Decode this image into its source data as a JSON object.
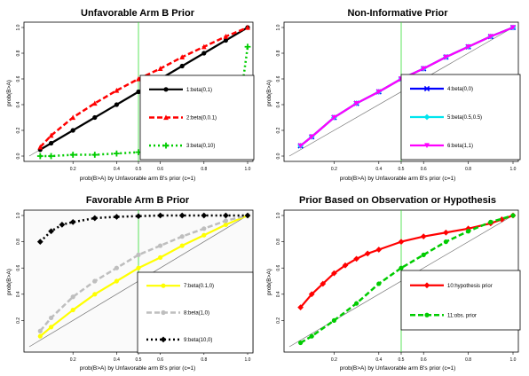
{
  "chart_data": [
    {
      "type": "line",
      "title": "Unfavorable Arm B Prior",
      "xlabel": "prob(B>A) by Unfavorable arm B's prior (c=1)",
      "ylabel": "prob(B>A)",
      "xlim": [
        0,
        1
      ],
      "ylim": [
        0,
        1
      ],
      "xticks": [
        "0.2",
        "0.4",
        "0.5",
        "0.6",
        "0.8",
        "1.0"
      ],
      "yticks": [
        "0.0",
        "0.2",
        "0.4",
        "0.6",
        "0.8",
        "1.0"
      ],
      "legend_position": "center-right",
      "series": [
        {
          "name": "1:beta(0,1)",
          "color": "#000000",
          "style": "solid",
          "marker": "circle",
          "x": [
            0.05,
            0.1,
            0.2,
            0.3,
            0.4,
            0.5,
            0.6,
            0.7,
            0.8,
            0.9,
            1.0
          ],
          "y": [
            0.05,
            0.1,
            0.2,
            0.3,
            0.4,
            0.5,
            0.6,
            0.7,
            0.8,
            0.9,
            1.0
          ]
        },
        {
          "name": "2:beta(0,0.1)",
          "color": "#ff0000",
          "style": "dashed",
          "marker": "triangle",
          "x": [
            0.05,
            0.1,
            0.2,
            0.3,
            0.4,
            0.5,
            0.6,
            0.7,
            0.8,
            0.9,
            1.0
          ],
          "y": [
            0.07,
            0.16,
            0.3,
            0.41,
            0.51,
            0.6,
            0.68,
            0.77,
            0.85,
            0.93,
            1.0
          ]
        },
        {
          "name": "3:beta(0,10)",
          "color": "#00cc00",
          "style": "dotted",
          "marker": "plus",
          "x": [
            0.05,
            0.1,
            0.2,
            0.3,
            0.4,
            0.5,
            0.6,
            0.7,
            0.8,
            0.9,
            0.95,
            0.98,
            1.0
          ],
          "y": [
            0.0,
            0.0,
            0.01,
            0.01,
            0.02,
            0.03,
            0.05,
            0.08,
            0.13,
            0.25,
            0.38,
            0.6,
            0.85
          ]
        }
      ],
      "reference_line_x": 0.5
    },
    {
      "type": "line",
      "title": "Non-Informative Prior",
      "xlabel": "prob(B>A) by Unfavorable arm B's prior (c=1)",
      "ylabel": "prob(B>A)",
      "xlim": [
        0,
        1
      ],
      "ylim": [
        0,
        1
      ],
      "xticks": [
        "0.2",
        "0.4",
        "0.5",
        "0.6",
        "0.8",
        "1.0"
      ],
      "yticks": [
        "0.0",
        "0.2",
        "0.4",
        "0.6",
        "0.8",
        "1.0"
      ],
      "legend_position": "bottom-right",
      "series": [
        {
          "name": "4:beta(0,0)",
          "color": "#0000ff",
          "style": "solid",
          "marker": "x",
          "x": [
            0.05,
            0.1,
            0.2,
            0.3,
            0.4,
            0.5,
            0.6,
            0.7,
            0.8,
            0.9,
            1.0
          ],
          "y": [
            0.08,
            0.15,
            0.3,
            0.41,
            0.5,
            0.6,
            0.68,
            0.77,
            0.85,
            0.93,
            1.0
          ]
        },
        {
          "name": "5:beta(0.5,0.5)",
          "color": "#00e5ee",
          "style": "solid",
          "marker": "diamond",
          "x": [
            0.05,
            0.1,
            0.2,
            0.3,
            0.4,
            0.5,
            0.6,
            0.7,
            0.8,
            0.9,
            1.0
          ],
          "y": [
            0.08,
            0.15,
            0.3,
            0.41,
            0.5,
            0.6,
            0.68,
            0.77,
            0.85,
            0.93,
            1.0
          ]
        },
        {
          "name": "6:beta(1,1)",
          "color": "#ff00ff",
          "style": "solid",
          "marker": "triangle-down",
          "x": [
            0.05,
            0.1,
            0.2,
            0.3,
            0.4,
            0.5,
            0.6,
            0.7,
            0.8,
            0.9,
            1.0
          ],
          "y": [
            0.08,
            0.15,
            0.3,
            0.41,
            0.5,
            0.6,
            0.68,
            0.77,
            0.85,
            0.93,
            1.0
          ]
        }
      ],
      "reference_line_x": 0.5
    },
    {
      "type": "line",
      "title": "Favorable Arm B Prior",
      "xlabel": "prob(B>A) by Unfavorable arm B's prior (c=1)",
      "ylabel": "prob(B>A)",
      "xlim": [
        0,
        1
      ],
      "ylim": [
        0,
        1
      ],
      "xticks": [
        "0.2",
        "0.4",
        "0.5",
        "0.6",
        "0.8",
        "1.0"
      ],
      "yticks": [
        "0.2",
        "0.4",
        "0.6",
        "0.8",
        "1.0"
      ],
      "legend_position": "bottom-right",
      "series": [
        {
          "name": "7:beta(0.1,0)",
          "color": "#ffff00",
          "style": "solid",
          "marker": "circle",
          "x": [
            0.05,
            0.1,
            0.2,
            0.3,
            0.4,
            0.5,
            0.6,
            0.7,
            0.8,
            0.9,
            1.0
          ],
          "y": [
            0.08,
            0.15,
            0.28,
            0.4,
            0.5,
            0.6,
            0.68,
            0.77,
            0.85,
            0.93,
            1.0
          ]
        },
        {
          "name": "8:beta(1,0)",
          "color": "#bebebe",
          "style": "dashed",
          "marker": "circle",
          "x": [
            0.05,
            0.1,
            0.2,
            0.3,
            0.4,
            0.5,
            0.6,
            0.7,
            0.8,
            0.9,
            1.0
          ],
          "y": [
            0.12,
            0.22,
            0.38,
            0.5,
            0.6,
            0.7,
            0.77,
            0.84,
            0.9,
            0.96,
            1.0
          ]
        },
        {
          "name": "9:beta(10,0)",
          "color": "#000000",
          "style": "dotted",
          "marker": "diamond",
          "x": [
            0.05,
            0.1,
            0.15,
            0.2,
            0.3,
            0.4,
            0.5,
            0.6,
            0.7,
            0.8,
            0.9,
            1.0
          ],
          "y": [
            0.8,
            0.88,
            0.93,
            0.95,
            0.98,
            0.99,
            0.995,
            1.0,
            1.0,
            1.0,
            1.0,
            1.0
          ]
        }
      ],
      "reference_line_x": 0.5
    },
    {
      "type": "line",
      "title": "Prior Based on Observation or Hypothesis",
      "xlabel": "prob(B>A) by Unfavorable arm B's prior (c=1)",
      "ylabel": "prob(B>A)",
      "xlim": [
        0,
        1
      ],
      "ylim": [
        0,
        1
      ],
      "xticks": [
        "0.2",
        "0.4",
        "0.5",
        "0.6",
        "0.8",
        "1.0"
      ],
      "yticks": [
        "0.2",
        "0.4",
        "0.6",
        "0.8",
        "1.0"
      ],
      "legend_position": "bottom-right",
      "series": [
        {
          "name": "10:hypothesis prior",
          "color": "#ff0000",
          "style": "solid",
          "marker": "diamond",
          "x": [
            0.05,
            0.1,
            0.15,
            0.2,
            0.25,
            0.3,
            0.35,
            0.4,
            0.5,
            0.6,
            0.7,
            0.8,
            0.9,
            0.95,
            1.0
          ],
          "y": [
            0.3,
            0.4,
            0.48,
            0.56,
            0.62,
            0.67,
            0.71,
            0.74,
            0.8,
            0.84,
            0.87,
            0.9,
            0.94,
            0.97,
            1.0
          ]
        },
        {
          "name": "11:obs. prior",
          "color": "#00cc00",
          "style": "dashed",
          "marker": "circle",
          "x": [
            0.05,
            0.1,
            0.2,
            0.3,
            0.4,
            0.5,
            0.6,
            0.7,
            0.8,
            0.9,
            1.0
          ],
          "y": [
            0.03,
            0.08,
            0.2,
            0.33,
            0.48,
            0.6,
            0.7,
            0.8,
            0.88,
            0.95,
            1.0
          ]
        }
      ],
      "reference_line_x": 0.5
    }
  ]
}
